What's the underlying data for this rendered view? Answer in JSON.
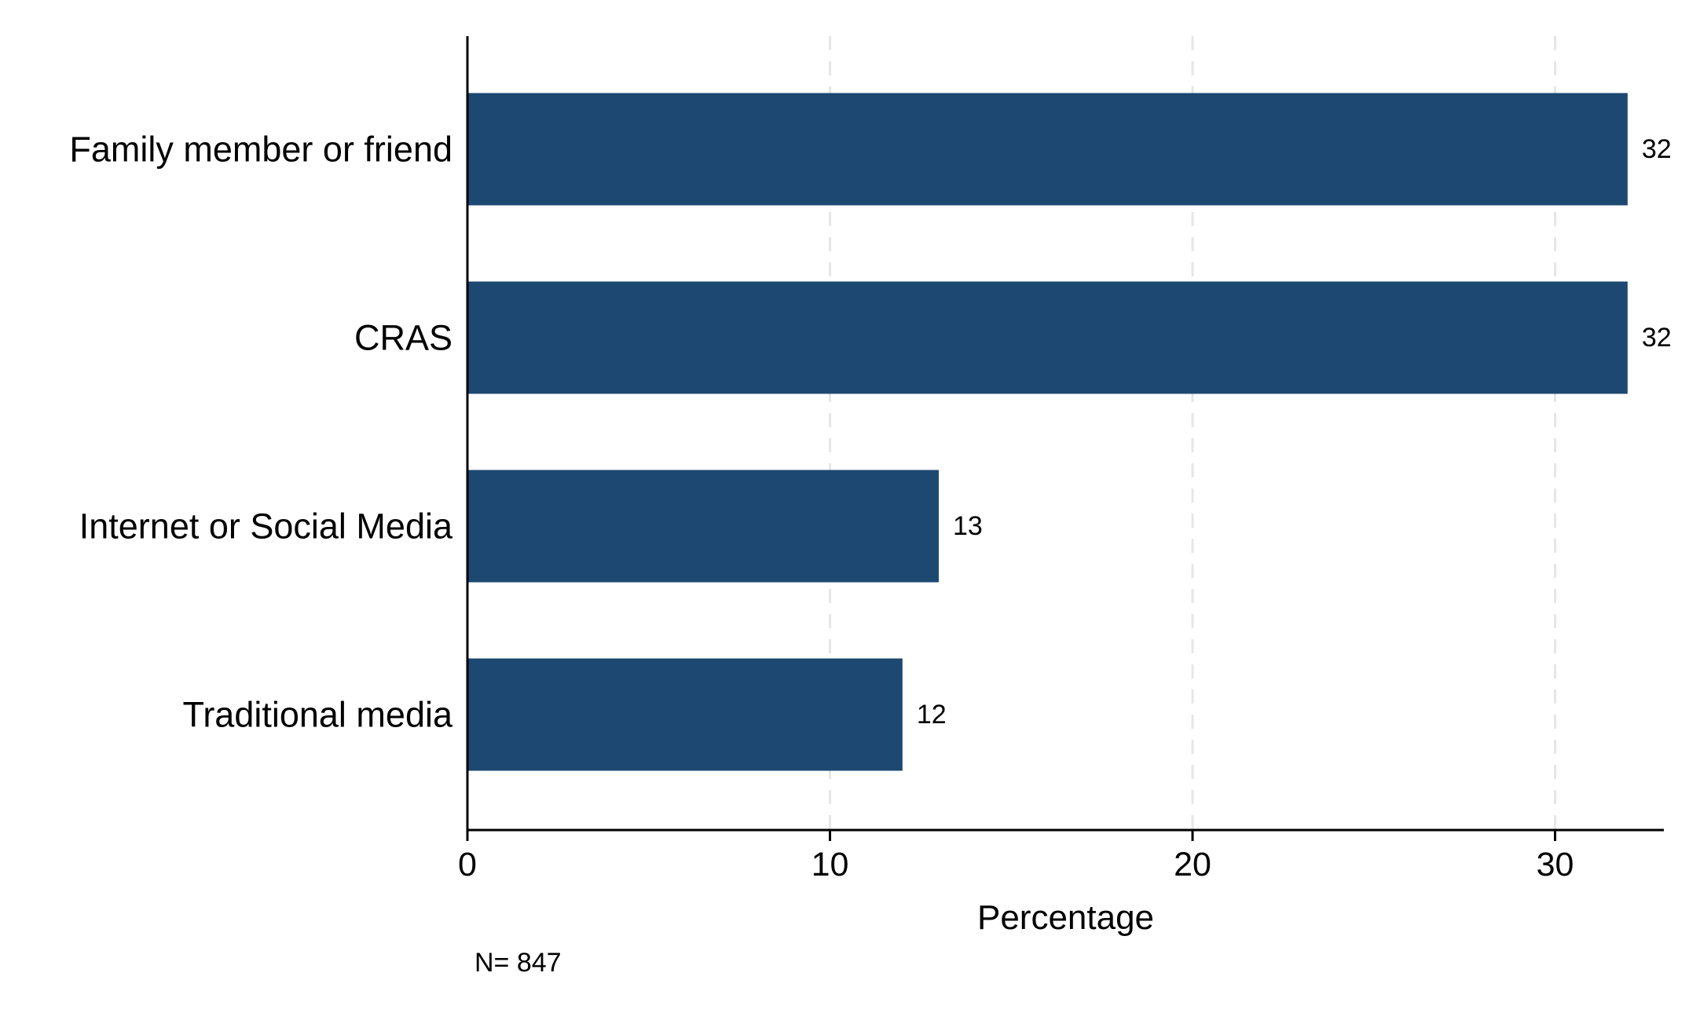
{
  "chart_data": {
    "type": "bar",
    "orientation": "horizontal",
    "categories": [
      "Family member or friend",
      "CRAS",
      "Internet or Social Media",
      "Traditional media"
    ],
    "values": [
      32,
      32,
      13,
      12
    ],
    "data_labels": [
      "32",
      "32",
      "13",
      "12"
    ],
    "xlabel": "Percentage",
    "xlim": [
      0,
      33
    ],
    "xticks": [
      0,
      10,
      20,
      30
    ],
    "xtick_labels": [
      "0",
      "10",
      "20",
      "30"
    ],
    "grid": "vertical dashed",
    "bar_color": "#1c4872",
    "gridline_color": "#e6e6e6",
    "note": "N= 847"
  }
}
